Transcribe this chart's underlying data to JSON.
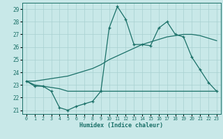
{
  "title": "",
  "xlabel": "Humidex (Indice chaleur)",
  "ylabel": "",
  "background_color": "#c8e8e8",
  "grid_color": "#a8d0d0",
  "line_color": "#1a7068",
  "x": [
    0,
    1,
    2,
    3,
    4,
    5,
    6,
    7,
    8,
    9,
    10,
    11,
    12,
    13,
    14,
    15,
    16,
    17,
    18,
    19,
    20,
    21,
    22,
    23
  ],
  "y_main": [
    23.3,
    22.9,
    22.9,
    22.5,
    21.2,
    21.0,
    21.3,
    21.5,
    21.7,
    22.5,
    27.5,
    29.2,
    28.2,
    26.2,
    26.2,
    26.1,
    27.5,
    28.0,
    27.0,
    26.8,
    25.2,
    24.2,
    23.2,
    22.5
  ],
  "y_upper": [
    23.3,
    23.3,
    23.4,
    23.5,
    23.6,
    23.7,
    23.9,
    24.1,
    24.3,
    24.6,
    25.0,
    25.3,
    25.6,
    25.9,
    26.2,
    26.4,
    26.6,
    26.8,
    26.9,
    27.0,
    27.0,
    26.9,
    26.7,
    26.5
  ],
  "y_lower": [
    23.3,
    23.0,
    22.9,
    22.8,
    22.7,
    22.5,
    22.5,
    22.5,
    22.5,
    22.5,
    22.5,
    22.5,
    22.5,
    22.5,
    22.5,
    22.5,
    22.5,
    22.5,
    22.5,
    22.5,
    22.5,
    22.5,
    22.5,
    22.5
  ],
  "ylim": [
    20.7,
    29.5
  ],
  "xlim": [
    -0.5,
    23.5
  ],
  "yticks": [
    21,
    22,
    23,
    24,
    25,
    26,
    27,
    28,
    29
  ],
  "xticks": [
    0,
    1,
    2,
    3,
    4,
    5,
    6,
    7,
    8,
    9,
    10,
    11,
    12,
    13,
    14,
    15,
    16,
    17,
    18,
    19,
    20,
    21,
    22,
    23
  ]
}
